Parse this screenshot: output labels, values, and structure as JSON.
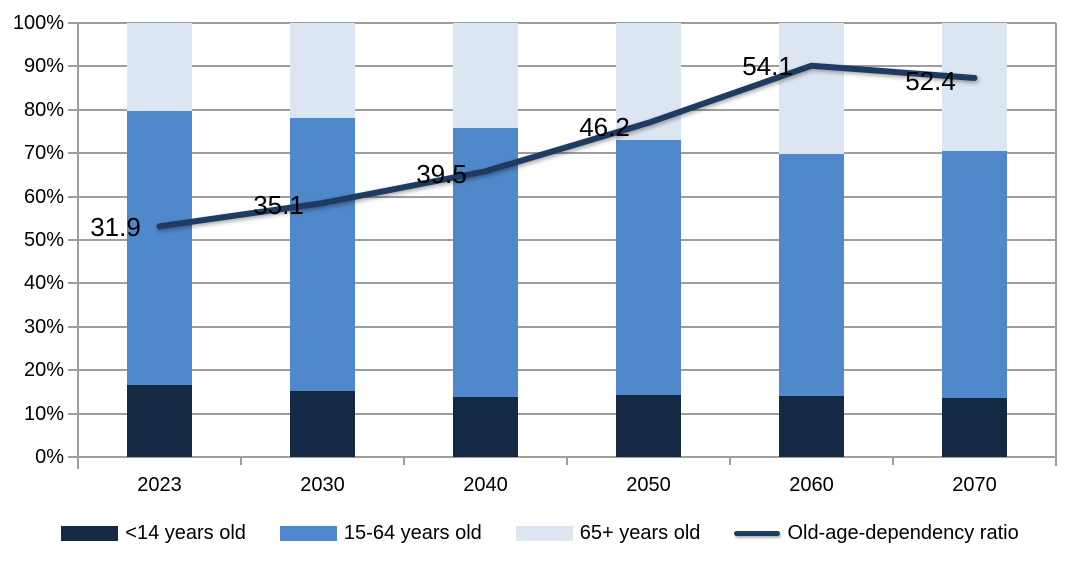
{
  "chart_data": {
    "type": "bar",
    "subtype": "stacked-100-percent-with-line-overlay",
    "title": "",
    "categories": [
      "2023",
      "2030",
      "2040",
      "2050",
      "2060",
      "2070"
    ],
    "series": [
      {
        "name": "<14 years old",
        "kind": "bar",
        "color": "#142A44",
        "values": [
          16.5,
          15.1,
          13.9,
          14.3,
          14.1,
          13.6
        ]
      },
      {
        "name": "15-64 years old",
        "kind": "bar",
        "color": "#4F88CB",
        "values": [
          63.3,
          62.9,
          61.9,
          58.7,
          55.7,
          56.9
        ]
      },
      {
        "name": "65+ years old",
        "kind": "bar",
        "color": "#DCE6F2",
        "values": [
          20.2,
          22.0,
          24.2,
          27.0,
          30.2,
          29.5
        ]
      },
      {
        "name": "Old-age-dependency ratio",
        "kind": "line",
        "color": "#1F3B61",
        "values": [
          31.9,
          35.1,
          39.5,
          46.2,
          54.1,
          52.4
        ],
        "labels": [
          "31.9",
          "35.1",
          "39.5",
          "46.2",
          "54.1",
          "52.4"
        ]
      }
    ],
    "y_axis": {
      "min": 0,
      "max": 100,
      "step": 10,
      "ticks": [
        "0%",
        "10%",
        "20%",
        "30%",
        "40%",
        "50%",
        "60%",
        "70%",
        "80%",
        "90%",
        "100%"
      ]
    },
    "secondary_y_axis": {
      "min": 0,
      "max": 60,
      "visible": false
    },
    "grid": true,
    "legend_position": "bottom"
  },
  "colors": {
    "grid": "#9E9E9E",
    "axis": "#9E9E9E",
    "text": "#000000",
    "background": "#FFFFFF"
  }
}
